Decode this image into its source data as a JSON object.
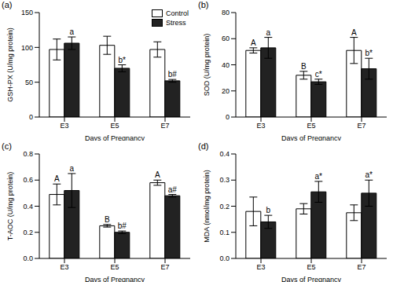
{
  "chart_data": [
    {
      "type": "bar",
      "title": "(a)",
      "xlabel": "Days of Pregnancy",
      "ylabel": "GSH-PX (U/mg protein)",
      "categories": [
        "E3",
        "E5",
        "E7"
      ],
      "ylim": [
        0,
        150
      ],
      "yticks": [
        0,
        50,
        100,
        150
      ],
      "grid": false,
      "legend": "upper right",
      "series": [
        {
          "name": "Control",
          "color": "#ffffff",
          "values": [
            97,
            103,
            97
          ],
          "errors": [
            15,
            13,
            11
          ]
        },
        {
          "name": "Stress",
          "color": "#222222",
          "values": [
            106,
            70,
            52
          ],
          "errors": [
            9,
            5,
            2
          ],
          "annotations": [
            "a",
            "b*",
            "b#"
          ]
        }
      ]
    },
    {
      "type": "bar",
      "title": "(b)",
      "xlabel": "Days of Pregnancy",
      "ylabel": "SOD (U/mg protein)",
      "categories": [
        "E3",
        "E5",
        "E7"
      ],
      "ylim": [
        0,
        80
      ],
      "yticks": [
        0,
        20,
        40,
        60,
        80
      ],
      "grid": false,
      "series": [
        {
          "name": "Control",
          "color": "#ffffff",
          "values": [
            51,
            32,
            51
          ],
          "errors": [
            2,
            3,
            10
          ],
          "annotations": [
            "A",
            "B",
            "A"
          ]
        },
        {
          "name": "Stress",
          "color": "#222222",
          "values": [
            53,
            27,
            37
          ],
          "errors": [
            8,
            2,
            8
          ],
          "annotations": [
            "a",
            "c*",
            "b*"
          ]
        }
      ]
    },
    {
      "type": "bar",
      "title": "(c)",
      "xlabel": "Days of Pregnancy",
      "ylabel": "T-AOC (U/mg protein)",
      "categories": [
        "E3",
        "E5",
        "E7"
      ],
      "ylim": [
        0,
        0.8
      ],
      "yticks": [
        {
          "value": 0,
          "label": "0.0"
        },
        0.2,
        0.4,
        0.6,
        0.8
      ],
      "grid": false,
      "series": [
        {
          "name": "Control",
          "color": "#ffffff",
          "values": [
            0.49,
            0.25,
            0.58
          ],
          "errors": [
            0.08,
            0.01,
            0.02
          ],
          "annotations": [
            "A",
            "B",
            "A"
          ]
        },
        {
          "name": "Stress",
          "color": "#222222",
          "values": [
            0.52,
            0.2,
            0.48
          ],
          "errors": [
            0.13,
            0.01,
            0.01
          ],
          "annotations": [
            "a",
            "b#",
            "a#"
          ]
        }
      ]
    },
    {
      "type": "bar",
      "title": "(d)",
      "xlabel": "Days of Pregnancy",
      "ylabel": "MDA (nmol/mg protein)",
      "categories": [
        "E3",
        "E5",
        "E7"
      ],
      "ylim": [
        0,
        0.4
      ],
      "yticks": [
        {
          "value": 0,
          "label": "0.0"
        },
        0.1,
        0.2,
        0.3,
        0.4
      ],
      "grid": false,
      "series": [
        {
          "name": "Control",
          "color": "#ffffff",
          "values": [
            0.18,
            0.19,
            0.175
          ],
          "errors": [
            0.055,
            0.02,
            0.03
          ]
        },
        {
          "name": "Stress",
          "color": "#222222",
          "values": [
            0.14,
            0.255,
            0.25
          ],
          "errors": [
            0.025,
            0.04,
            0.05
          ],
          "annotations": [
            "b",
            "a*",
            "a*"
          ]
        }
      ]
    }
  ]
}
